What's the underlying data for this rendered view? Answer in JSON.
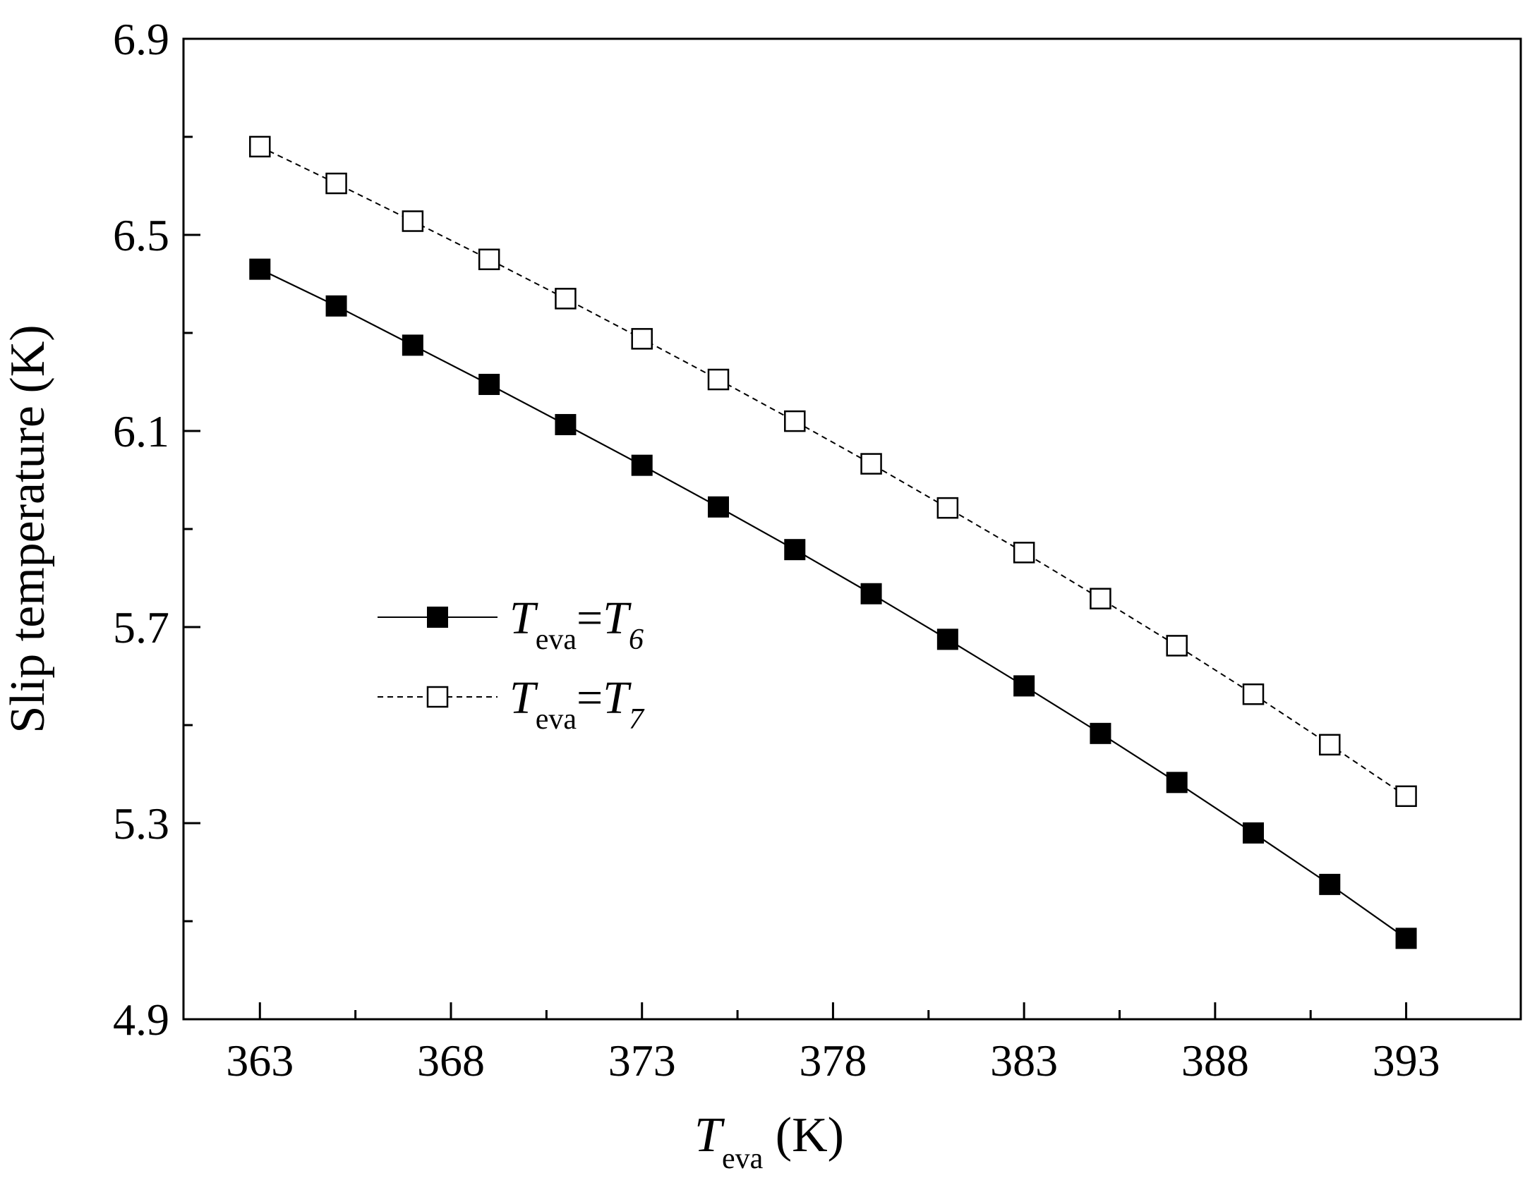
{
  "chart_data": {
    "type": "line",
    "xlabel": {
      "main": "T",
      "sub": "eva",
      "unit": " (K)"
    },
    "ylabel": "Slip temperature (K)",
    "xlim": [
      361,
      396
    ],
    "ylim": [
      4.9,
      6.9
    ],
    "xticks": [
      "363",
      "368",
      "373",
      "378",
      "383",
      "388",
      "393"
    ],
    "yticks": [
      "4.9",
      "5.3",
      "5.7",
      "6.1",
      "6.5",
      "6.9"
    ],
    "grid": false,
    "legend_position": "center-left",
    "x": [
      363,
      365,
      367,
      369,
      371,
      373,
      375,
      377,
      379,
      381,
      383,
      385,
      387,
      389,
      391,
      393
    ],
    "series": [
      {
        "name": "T_eva=T_6",
        "legend": {
          "a": "T",
          "a_sub": "eva",
          "eq": "=",
          "b": "T",
          "b_sub": "6"
        },
        "marker": "filled-square",
        "line": "solid",
        "color": "#000000",
        "values": [
          6.43,
          6.355,
          6.275,
          6.195,
          6.113,
          6.03,
          5.945,
          5.858,
          5.768,
          5.675,
          5.58,
          5.483,
          5.383,
          5.28,
          5.175,
          5.065
        ]
      },
      {
        "name": "T_eva=T_7",
        "legend": {
          "a": "T",
          "a_sub": "eva",
          "eq": "=",
          "b": "T",
          "b_sub": "7"
        },
        "marker": "open-square",
        "line": "dashed",
        "color": "#000000",
        "values": [
          6.68,
          6.605,
          6.528,
          6.45,
          6.37,
          6.288,
          6.205,
          6.12,
          6.033,
          5.943,
          5.852,
          5.758,
          5.662,
          5.563,
          5.46,
          5.355
        ]
      }
    ]
  }
}
